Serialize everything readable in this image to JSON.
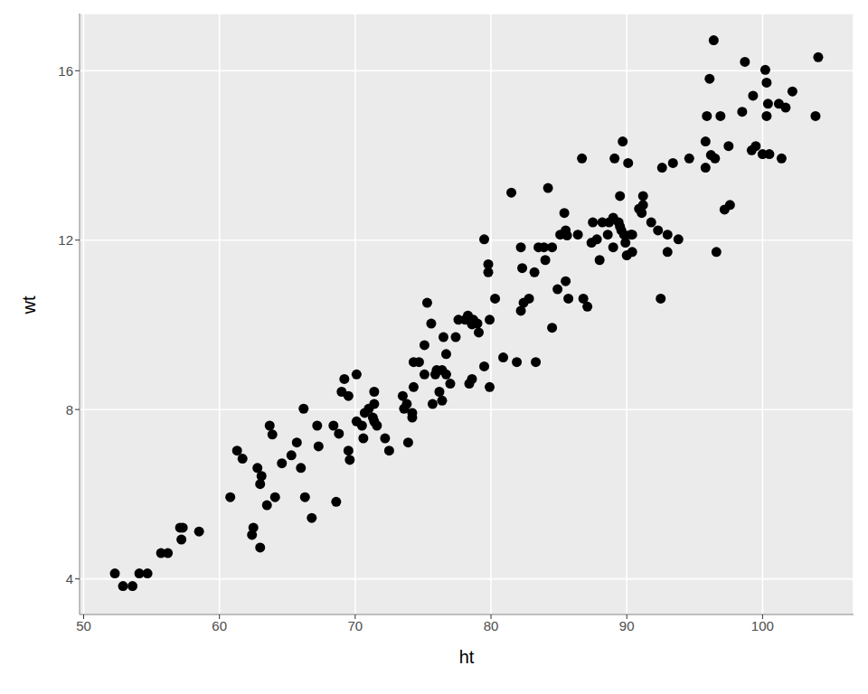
{
  "chart_data": {
    "type": "scatter",
    "x_label": "ht",
    "y_label": "wt",
    "color": "#000000",
    "marker": "circle",
    "grid": true,
    "xlim": [
      49.7,
      106.7
    ],
    "ylim": [
      3.16,
      17.35
    ],
    "xticks": [
      50,
      60,
      70,
      80,
      90,
      100
    ],
    "yticks": [
      4,
      8,
      12,
      16
    ],
    "x": [
      52.3,
      52.9,
      53.6,
      54.1,
      54.7,
      55.7,
      56.2,
      57.1,
      57.3,
      57.2,
      58.5,
      60.8,
      61.3,
      61.7,
      62.4,
      62.5,
      62.8,
      63.0,
      63.1,
      63.0,
      63.5,
      63.7,
      63.9,
      64.1,
      64.6,
      65.3,
      65.7,
      66.0,
      66.2,
      66.3,
      66.8,
      67.2,
      67.3,
      68.4,
      68.6,
      68.8,
      69.0,
      69.2,
      69.5,
      69.5,
      69.6,
      70.1,
      70.1,
      70.5,
      70.6,
      70.7,
      71.0,
      71.3,
      71.4,
      71.4,
      71.4,
      71.6,
      72.2,
      72.5,
      73.5,
      73.6,
      73.8,
      73.9,
      74.2,
      74.2,
      74.3,
      74.3,
      74.7,
      75.1,
      75.1,
      75.3,
      75.6,
      75.7,
      75.9,
      76.0,
      76.2,
      76.4,
      76.4,
      76.5,
      76.7,
      76.7,
      77.0,
      77.4,
      77.6,
      78.1,
      78.3,
      78.4,
      78.6,
      78.7,
      79.0,
      79.1,
      78.6,
      78.4,
      79.5,
      79.5,
      79.8,
      79.8,
      79.9,
      79.9,
      80.3,
      80.9,
      81.5,
      81.9,
      82.2,
      82.2,
      82.3,
      82.4,
      82.8,
      83.2,
      83.3,
      83.5,
      83.9,
      84.0,
      84.2,
      84.5,
      84.5,
      84.9,
      85.1,
      85.4,
      85.5,
      85.5,
      85.6,
      85.7,
      86.4,
      86.7,
      86.8,
      87.1,
      87.4,
      87.5,
      87.8,
      88.0,
      88.2,
      88.6,
      88.7,
      89.0,
      89.0,
      89.1,
      89.4,
      89.5,
      89.5,
      89.7,
      89.6,
      89.8,
      89.9,
      90.0,
      90.1,
      90.3,
      90.4,
      90.4,
      90.9,
      91.1,
      91.2,
      91.2,
      91.8,
      92.3,
      92.5,
      92.6,
      93.0,
      93.0,
      93.4,
      93.8,
      94.6,
      95.8,
      95.8,
      95.9,
      96.1,
      96.2,
      96.4,
      96.5,
      96.6,
      96.9,
      97.2,
      97.5,
      97.6,
      98.5,
      98.7,
      99.2,
      99.3,
      99.5,
      100.0,
      100.2,
      100.3,
      100.3,
      100.4,
      100.5,
      101.2,
      101.4,
      101.7,
      102.2,
      103.9,
      104.1
    ],
    "values": [
      4.13,
      3.83,
      3.83,
      4.13,
      4.13,
      4.61,
      4.61,
      5.21,
      5.21,
      4.93,
      5.12,
      5.93,
      7.03,
      6.84,
      5.04,
      5.21,
      6.62,
      6.24,
      6.43,
      4.74,
      5.74,
      7.62,
      7.41,
      5.93,
      6.73,
      6.92,
      7.22,
      6.62,
      8.02,
      5.93,
      5.44,
      7.62,
      7.13,
      7.62,
      5.82,
      7.43,
      8.42,
      8.72,
      8.32,
      7.03,
      6.81,
      8.83,
      7.72,
      7.62,
      7.32,
      7.92,
      8.02,
      7.81,
      8.13,
      8.42,
      7.72,
      7.62,
      7.32,
      7.03,
      8.32,
      8.02,
      8.13,
      7.22,
      7.92,
      7.81,
      8.53,
      9.12,
      9.12,
      9.52,
      8.83,
      10.52,
      10.03,
      8.13,
      8.83,
      8.93,
      8.42,
      8.21,
      8.93,
      9.71,
      9.31,
      8.83,
      8.61,
      9.71,
      10.12,
      10.12,
      10.22,
      10.12,
      10.01,
      10.12,
      10.03,
      9.82,
      8.72,
      8.61,
      9.02,
      12.02,
      11.43,
      11.24,
      10.12,
      8.53,
      10.62,
      9.23,
      13.12,
      9.12,
      11.83,
      10.33,
      11.34,
      10.52,
      10.62,
      11.24,
      9.12,
      11.83,
      11.83,
      11.53,
      13.23,
      11.83,
      9.93,
      10.84,
      12.13,
      12.64,
      12.23,
      11.03,
      12.11,
      10.62,
      12.13,
      13.93,
      10.62,
      10.43,
      11.94,
      12.42,
      12.02,
      11.53,
      12.42,
      12.13,
      12.42,
      12.53,
      11.83,
      13.93,
      12.42,
      12.32,
      13.04,
      14.33,
      12.23,
      12.13,
      11.94,
      11.64,
      13.82,
      12.13,
      12.13,
      11.72,
      12.74,
      12.64,
      13.04,
      12.83,
      12.42,
      12.23,
      10.62,
      13.71,
      11.72,
      12.13,
      13.82,
      12.02,
      13.93,
      13.71,
      14.33,
      14.93,
      15.81,
      14.01,
      16.72,
      13.93,
      11.72,
      14.93,
      12.72,
      14.22,
      12.83,
      15.03,
      16.21,
      14.12,
      15.41,
      14.22,
      14.03,
      16.02,
      15.72,
      14.93,
      15.22,
      14.03,
      15.22,
      13.93,
      15.13,
      15.51,
      14.93,
      16.32
    ]
  }
}
